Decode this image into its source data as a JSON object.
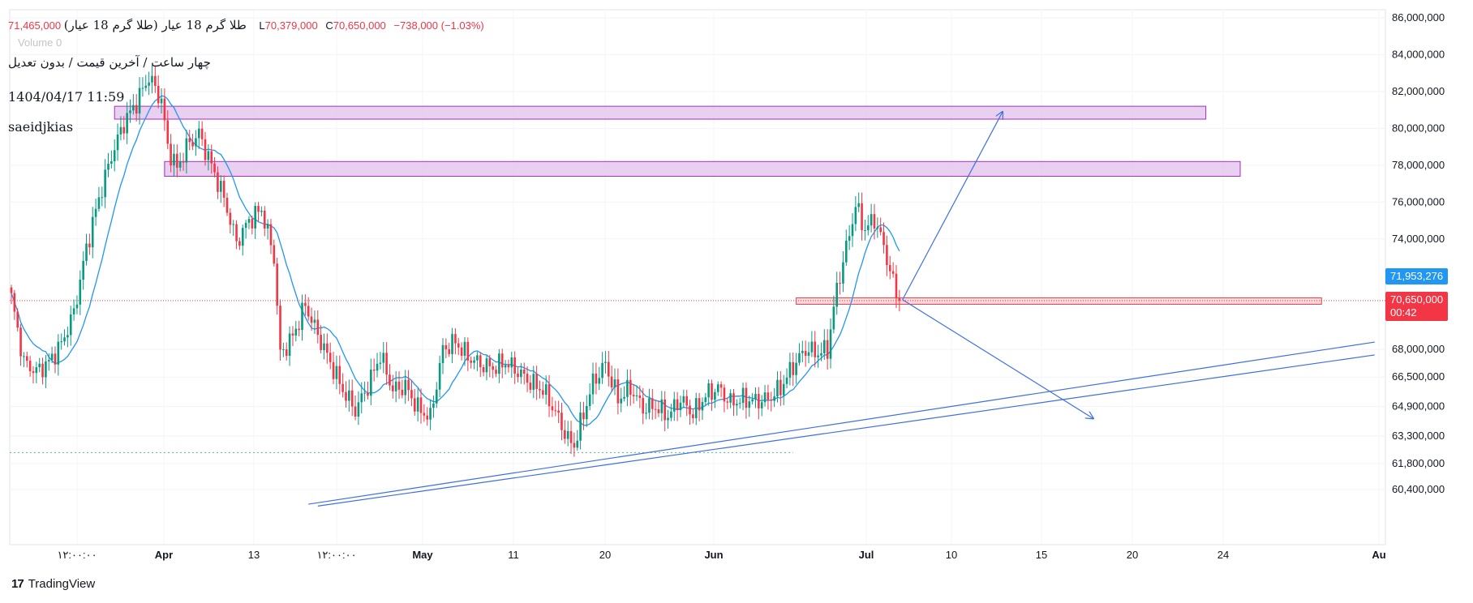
{
  "header": {
    "symbol": "طلا گرم 18 عیار (طلا گرم 18 عیار)",
    "ohlc_text": "71,465,000",
    "low_label": "L",
    "low": "70,379,000",
    "close_label": "C",
    "close": "70,650,000",
    "change": "−738,000 (−1.03%)",
    "volume": "Volume 0",
    "timeframe_line": "چهار ساعت / آخرین قیمت / بدون تعدیل",
    "date_line": "1404/04/17 11:59",
    "author_line": "saeidjkias"
  },
  "branding": {
    "logo_text": "TradingView",
    "logo_mark": "17"
  },
  "price_tags": {
    "ma_value": "71,953,276",
    "last_price": "70,650,000",
    "countdown": "00:42"
  },
  "colors": {
    "up": "#089981",
    "down": "#f23645",
    "ma": "#2196f3",
    "zone_purple_fill": "#e8cdf0",
    "zone_purple_border": "#9c27b0",
    "zone_red_fill": "#f9d6d9",
    "zone_red_border": "#f23645",
    "trend": "#3d6fe0",
    "ma_tag": "#2196f3",
    "last_tag": "#f23645"
  },
  "chart_data": {
    "type": "candlestick",
    "y_axis_ticks": [
      "86,000,000",
      "84,000,000",
      "82,000,000",
      "80,000,000",
      "78,000,000",
      "76,000,000",
      "74,000,000",
      "71,953,276",
      "70,650,000",
      "68,000,000",
      "66,500,000",
      "64,900,000",
      "63,300,000",
      "61,800,000",
      "60,400,000"
    ],
    "x_axis_labels": [
      "۱۲:۰۰:۰۰",
      "Apr",
      "13",
      "۱۲:۰۰:۰۰",
      "May",
      "11",
      "20",
      "Jun",
      "Jul",
      "10",
      "15",
      "20",
      "24",
      "Au"
    ],
    "ylim": [
      59500000,
      86600000
    ],
    "price_anchors": [
      [
        0,
        70800000
      ],
      [
        4,
        67300000
      ],
      [
        8,
        66800000
      ],
      [
        12,
        67300000
      ],
      [
        16,
        68300000
      ],
      [
        20,
        70000000
      ],
      [
        24,
        73500000
      ],
      [
        28,
        76200000
      ],
      [
        32,
        78500000
      ],
      [
        36,
        80300000
      ],
      [
        40,
        81400000
      ],
      [
        44,
        82800000
      ],
      [
        48,
        81500000
      ],
      [
        50,
        79000000
      ],
      [
        53,
        77800000
      ],
      [
        56,
        79000000
      ],
      [
        60,
        79700000
      ],
      [
        64,
        78000000
      ],
      [
        68,
        76200000
      ],
      [
        72,
        73800000
      ],
      [
        76,
        75000000
      ],
      [
        80,
        75600000
      ],
      [
        84,
        73000000
      ],
      [
        86,
        67700000
      ],
      [
        90,
        68700000
      ],
      [
        94,
        70400000
      ],
      [
        98,
        68800000
      ],
      [
        102,
        67300000
      ],
      [
        106,
        65800000
      ],
      [
        110,
        64700000
      ],
      [
        114,
        66000000
      ],
      [
        118,
        67700000
      ],
      [
        122,
        65800000
      ],
      [
        126,
        66000000
      ],
      [
        130,
        64800000
      ],
      [
        134,
        64300000
      ],
      [
        138,
        68000000
      ],
      [
        142,
        68400000
      ],
      [
        146,
        67600000
      ],
      [
        150,
        67200000
      ],
      [
        154,
        67000000
      ],
      [
        158,
        67300000
      ],
      [
        162,
        66800000
      ],
      [
        166,
        66200000
      ],
      [
        170,
        65800000
      ],
      [
        174,
        64600000
      ],
      [
        178,
        63100000
      ],
      [
        180,
        62800000
      ],
      [
        183,
        64500000
      ],
      [
        186,
        66200000
      ],
      [
        190,
        67200000
      ],
      [
        194,
        65300000
      ],
      [
        198,
        65900000
      ],
      [
        202,
        64800000
      ],
      [
        206,
        64900000
      ],
      [
        210,
        64400000
      ],
      [
        214,
        65300000
      ],
      [
        218,
        64500000
      ],
      [
        222,
        65500000
      ],
      [
        226,
        65900000
      ],
      [
        230,
        65100000
      ],
      [
        234,
        65300000
      ],
      [
        238,
        65200000
      ],
      [
        242,
        65300000
      ],
      [
        246,
        65900000
      ],
      [
        250,
        67100000
      ],
      [
        254,
        68000000
      ],
      [
        258,
        67800000
      ],
      [
        261,
        68000000
      ],
      [
        264,
        71300000
      ],
      [
        267,
        73500000
      ],
      [
        270,
        75800000
      ],
      [
        273,
        74500000
      ],
      [
        276,
        75100000
      ],
      [
        279,
        73600000
      ],
      [
        282,
        71600000
      ],
      [
        284,
        70650000
      ]
    ],
    "ma_window": 12,
    "levels": {
      "support": 61800000,
      "current": 70650000
    },
    "zones": [
      {
        "name": "resistance-upper",
        "from_index": 33,
        "to_index": 382,
        "y_top": 81200000,
        "y_bottom": 80500000,
        "kind": "purple"
      },
      {
        "name": "resistance-lower",
        "from_index": 49,
        "to_index": 393,
        "y_top": 78200000,
        "y_bottom": 77400000,
        "kind": "purple"
      },
      {
        "name": "pivot-zone",
        "from_index": 251,
        "to_index": 419,
        "y_top": 70800000,
        "y_bottom": 70450000,
        "kind": "red"
      }
    ],
    "arrows": [
      {
        "name": "bullish-arrow",
        "from": [
          285,
          70700000
        ],
        "to": [
          317,
          80900000
        ]
      },
      {
        "name": "bearish-arrow",
        "from": [
          285,
          70700000
        ],
        "to": [
          346,
          64250000
        ]
      }
    ],
    "trendlines": [
      {
        "name": "trendline-a",
        "from": [
          95,
          59600000
        ],
        "to": [
          436,
          68400000
        ]
      },
      {
        "name": "trendline-b",
        "from": [
          98,
          59500000
        ],
        "to": [
          436,
          67700000
        ]
      }
    ]
  }
}
